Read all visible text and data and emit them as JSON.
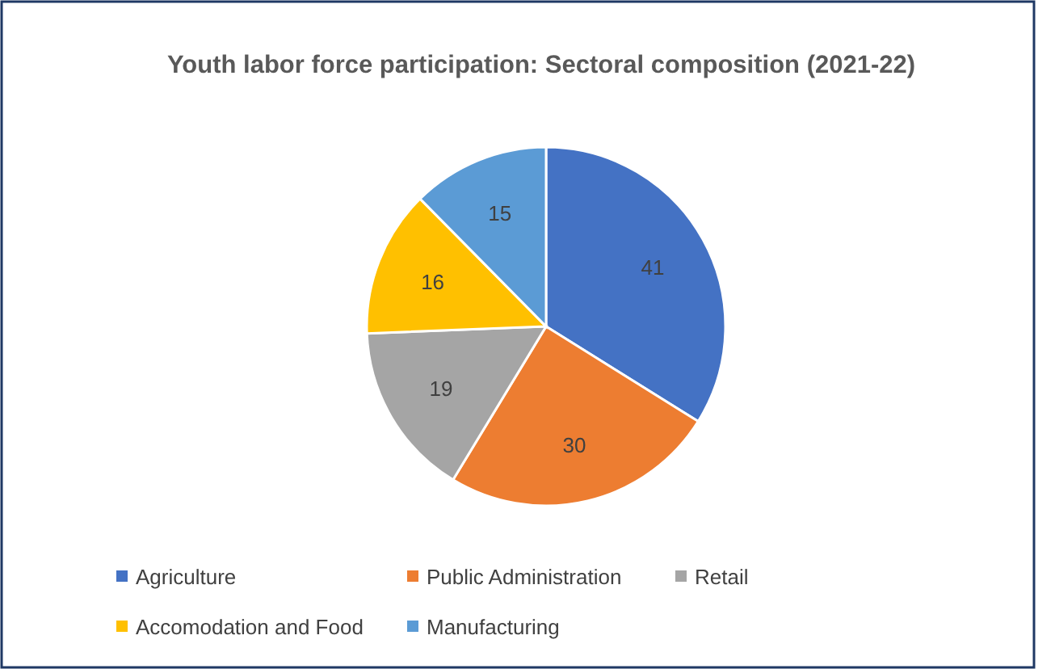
{
  "chart_data": {
    "type": "pie",
    "title": "Youth labor force participation: Sectoral composition (2021-22)",
    "categories": [
      "Agriculture",
      "Public Administration",
      "Retail",
      "Accomodation and Food",
      "Manufacturing"
    ],
    "values": [
      41,
      30,
      19,
      16,
      15
    ],
    "colors": [
      "#4472c4",
      "#ed7d31",
      "#a5a5a5",
      "#ffc000",
      "#5b9bd5"
    ],
    "data_labels": true,
    "legend": "bottom"
  }
}
